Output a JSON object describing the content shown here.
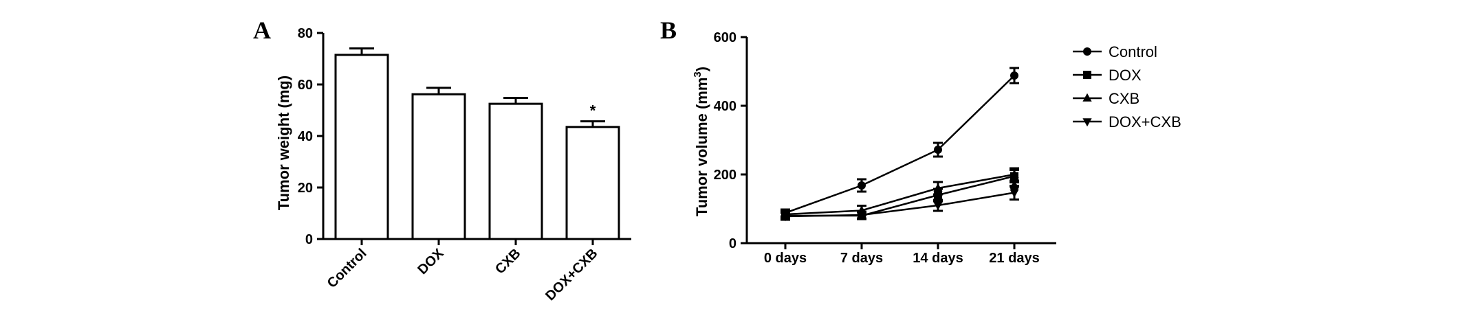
{
  "chart_data": [
    {
      "panel": "A",
      "type": "bar",
      "title": "",
      "xlabel": "",
      "ylabel": "Tumor weight  (mg)",
      "categories": [
        "Control",
        "DOX",
        "CXB",
        "DOX+CXB"
      ],
      "values": [
        71.5,
        56.2,
        52.5,
        43.5
      ],
      "errors": [
        2.5,
        2.5,
        2.3,
        2.2
      ],
      "annotations": [
        "",
        "",
        "",
        "*"
      ],
      "ylim": [
        0,
        80
      ],
      "yticks": [
        0,
        20,
        40,
        60,
        80
      ],
      "bar_fill": "#ffffff",
      "stroke_color": "#000000",
      "grid": false
    },
    {
      "panel": "B",
      "type": "line",
      "title": "",
      "xlabel": "",
      "ylabel": "Tumor volume  (mm",
      "ylabel_superscript": "3",
      "ylabel_close": ")",
      "x": [
        "0 days",
        "7 days",
        "14 days",
        "21 days"
      ],
      "ylim": [
        0,
        600
      ],
      "yticks": [
        0,
        200,
        400,
        600
      ],
      "legend_position": "right",
      "grid": false,
      "series": [
        {
          "name": "Control",
          "marker": "circle",
          "values": [
            88,
            168,
            272,
            488
          ],
          "errors": [
            10,
            18,
            20,
            22
          ]
        },
        {
          "name": "DOX",
          "marker": "square",
          "values": [
            80,
            80,
            140,
            195
          ],
          "errors": [
            10,
            10,
            18,
            18
          ]
        },
        {
          "name": "CXB",
          "marker": "triangle-up",
          "values": [
            84,
            95,
            160,
            200
          ],
          "errors": [
            10,
            14,
            18,
            18
          ]
        },
        {
          "name": "DOX+CXB",
          "marker": "triangle-down",
          "values": [
            78,
            82,
            110,
            147
          ],
          "errors": [
            10,
            10,
            16,
            20
          ]
        }
      ]
    }
  ],
  "panel_letters": {
    "a": "A",
    "b": "B"
  },
  "diamond_marker": {
    "x": "21 days",
    "y": 162,
    "shape": "diamond"
  }
}
